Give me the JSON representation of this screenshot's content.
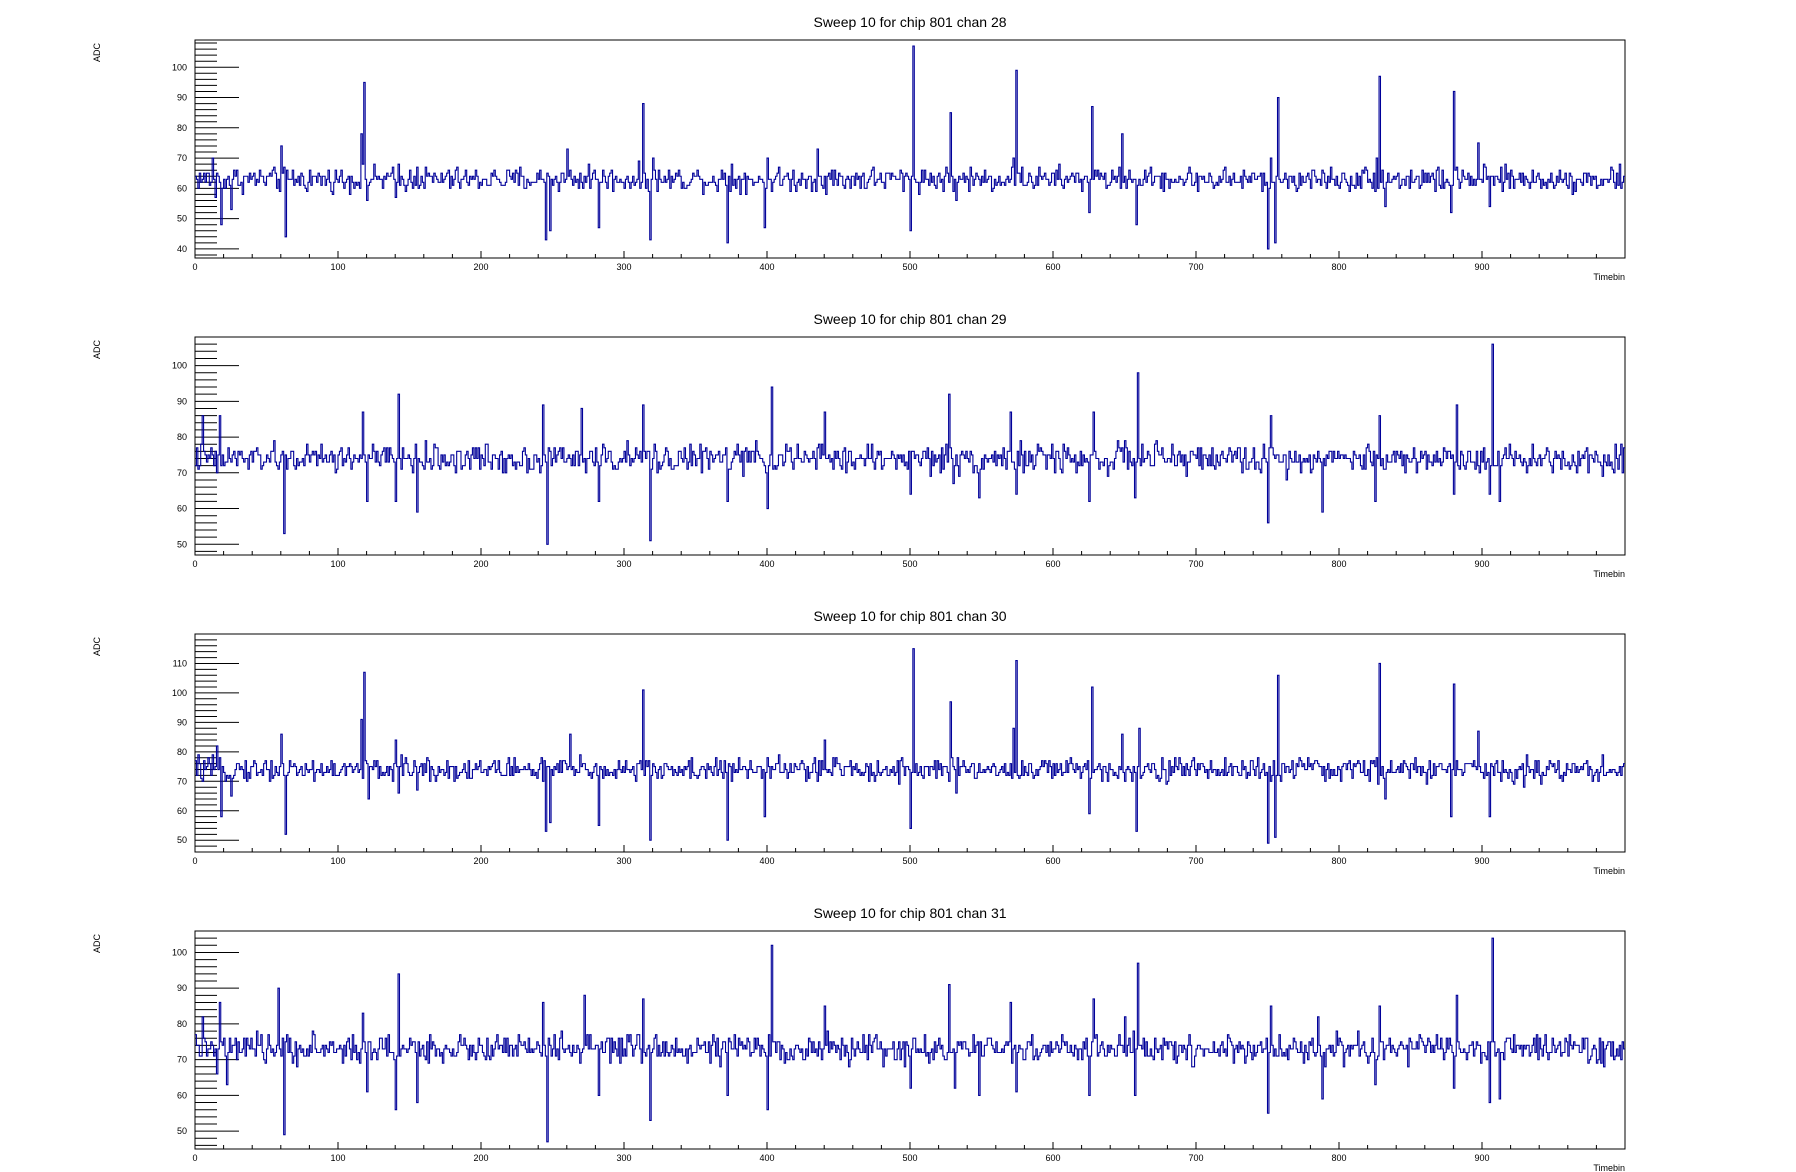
{
  "chart_data": [
    {
      "type": "line",
      "title": "Sweep 10 for chip 801 chan 28",
      "xlabel": "Timebin",
      "ylabel": "ADC",
      "xlim": [
        0,
        1000
      ],
      "ylim": [
        37,
        109
      ],
      "xticks": [
        0,
        100,
        200,
        300,
        400,
        500,
        600,
        700,
        800,
        900
      ],
      "yticks": [
        40,
        50,
        60,
        70,
        80,
        90,
        100
      ],
      "series": [
        {
          "color": "#000099",
          "baseline": 63,
          "spikes": [
            [
              12,
              70
            ],
            [
              14,
              57
            ],
            [
              18,
              48
            ],
            [
              25,
              53
            ],
            [
              60,
              74
            ],
            [
              63,
              44
            ],
            [
              116,
              78
            ],
            [
              118,
              95
            ],
            [
              120,
              56
            ],
            [
              140,
              57
            ],
            [
              142,
              68
            ],
            [
              155,
              67
            ],
            [
              245,
              43
            ],
            [
              248,
              46
            ],
            [
              260,
              73
            ],
            [
              275,
              68
            ],
            [
              282,
              47
            ],
            [
              313,
              88
            ],
            [
              318,
              43
            ],
            [
              320,
              70
            ],
            [
              372,
              42
            ],
            [
              375,
              68
            ],
            [
              398,
              47
            ],
            [
              400,
              70
            ],
            [
              435,
              73
            ],
            [
              500,
              46
            ],
            [
              502,
              107
            ],
            [
              528,
              85
            ],
            [
              532,
              56
            ],
            [
              572,
              70
            ],
            [
              574,
              99
            ],
            [
              625,
              52
            ],
            [
              627,
              87
            ],
            [
              648,
              78
            ],
            [
              658,
              48
            ],
            [
              750,
              40
            ],
            [
              752,
              70
            ],
            [
              755,
              42
            ],
            [
              757,
              90
            ],
            [
              826,
              70
            ],
            [
              828,
              97
            ],
            [
              832,
              54
            ],
            [
              878,
              52
            ],
            [
              880,
              92
            ],
            [
              897,
              75
            ],
            [
              905,
              54
            ]
          ]
        }
      ]
    },
    {
      "type": "line",
      "title": "Sweep 10 for chip 801 chan 29",
      "xlabel": "Timebin",
      "ylabel": "ADC",
      "xlim": [
        0,
        1000
      ],
      "ylim": [
        47,
        108
      ],
      "xticks": [
        0,
        100,
        200,
        300,
        400,
        500,
        600,
        700,
        800,
        900
      ],
      "yticks": [
        50,
        60,
        70,
        80,
        90,
        100
      ],
      "series": [
        {
          "color": "#000099",
          "baseline": 74,
          "spikes": [
            [
              5,
              86
            ],
            [
              15,
              70
            ],
            [
              17,
              86
            ],
            [
              20,
              72
            ],
            [
              60,
              75
            ],
            [
              62,
              53
            ],
            [
              117,
              87
            ],
            [
              120,
              62
            ],
            [
              140,
              62
            ],
            [
              142,
              92
            ],
            [
              155,
              59
            ],
            [
              243,
              89
            ],
            [
              246,
              50
            ],
            [
              270,
              88
            ],
            [
              282,
              62
            ],
            [
              313,
              89
            ],
            [
              318,
              51
            ],
            [
              372,
              62
            ],
            [
              400,
              60
            ],
            [
              403,
              94
            ],
            [
              440,
              87
            ],
            [
              500,
              64
            ],
            [
              527,
              92
            ],
            [
              530,
              67
            ],
            [
              548,
              63
            ],
            [
              570,
              87
            ],
            [
              574,
              64
            ],
            [
              625,
              62
            ],
            [
              628,
              87
            ],
            [
              650,
              79
            ],
            [
              657,
              63
            ],
            [
              659,
              98
            ],
            [
              750,
              56
            ],
            [
              752,
              86
            ],
            [
              785,
              76
            ],
            [
              788,
              59
            ],
            [
              825,
              62
            ],
            [
              828,
              86
            ],
            [
              880,
              64
            ],
            [
              882,
              89
            ],
            [
              905,
              64
            ],
            [
              907,
              106
            ],
            [
              912,
              62
            ]
          ]
        }
      ]
    },
    {
      "type": "line",
      "title": "Sweep 10 for chip 801 chan 30",
      "xlabel": "Timebin",
      "ylabel": "ADC",
      "xlim": [
        0,
        1000
      ],
      "ylim": [
        46,
        120
      ],
      "xticks": [
        0,
        100,
        200,
        300,
        400,
        500,
        600,
        700,
        800,
        900
      ],
      "yticks": [
        50,
        60,
        70,
        80,
        90,
        100,
        110
      ],
      "series": [
        {
          "color": "#000099",
          "baseline": 74,
          "spikes": [
            [
              15,
              82
            ],
            [
              18,
              58
            ],
            [
              25,
              65
            ],
            [
              60,
              86
            ],
            [
              63,
              52
            ],
            [
              116,
              91
            ],
            [
              118,
              107
            ],
            [
              121,
              64
            ],
            [
              140,
              84
            ],
            [
              142,
              66
            ],
            [
              155,
              67
            ],
            [
              245,
              53
            ],
            [
              248,
              56
            ],
            [
              262,
              86
            ],
            [
              282,
              55
            ],
            [
              313,
              101
            ],
            [
              318,
              50
            ],
            [
              372,
              50
            ],
            [
              375,
              70
            ],
            [
              398,
              58
            ],
            [
              400,
              78
            ],
            [
              440,
              84
            ],
            [
              500,
              54
            ],
            [
              502,
              115
            ],
            [
              528,
              97
            ],
            [
              532,
              66
            ],
            [
              572,
              88
            ],
            [
              574,
              111
            ],
            [
              625,
              59
            ],
            [
              627,
              102
            ],
            [
              648,
              86
            ],
            [
              658,
              53
            ],
            [
              660,
              88
            ],
            [
              750,
              49
            ],
            [
              752,
              70
            ],
            [
              755,
              51
            ],
            [
              757,
              106
            ],
            [
              826,
              78
            ],
            [
              828,
              110
            ],
            [
              832,
              64
            ],
            [
              878,
              58
            ],
            [
              880,
              103
            ],
            [
              897,
              87
            ],
            [
              905,
              58
            ]
          ]
        }
      ]
    },
    {
      "type": "line",
      "title": "Sweep 10 for chip 801 chan 31",
      "xlabel": "Timebin",
      "ylabel": "ADC",
      "xlim": [
        0,
        1000
      ],
      "ylim": [
        45,
        106
      ],
      "xticks": [
        0,
        100,
        200,
        300,
        400,
        500,
        600,
        700,
        800,
        900
      ],
      "yticks": [
        50,
        60,
        70,
        80,
        90,
        100
      ],
      "series": [
        {
          "color": "#000099",
          "baseline": 73,
          "spikes": [
            [
              5,
              82
            ],
            [
              15,
              66
            ],
            [
              17,
              86
            ],
            [
              22,
              63
            ],
            [
              58,
              90
            ],
            [
              62,
              49
            ],
            [
              117,
              83
            ],
            [
              120,
              61
            ],
            [
              140,
              56
            ],
            [
              142,
              94
            ],
            [
              155,
              58
            ],
            [
              243,
              86
            ],
            [
              246,
              47
            ],
            [
              272,
              88
            ],
            [
              282,
              60
            ],
            [
              313,
              87
            ],
            [
              318,
              53
            ],
            [
              372,
              60
            ],
            [
              400,
              56
            ],
            [
              403,
              102
            ],
            [
              440,
              85
            ],
            [
              500,
              62
            ],
            [
              527,
              91
            ],
            [
              531,
              62
            ],
            [
              548,
              60
            ],
            [
              570,
              86
            ],
            [
              574,
              61
            ],
            [
              625,
              60
            ],
            [
              628,
              87
            ],
            [
              650,
              82
            ],
            [
              657,
              60
            ],
            [
              659,
              97
            ],
            [
              750,
              55
            ],
            [
              752,
              85
            ],
            [
              785,
              82
            ],
            [
              788,
              59
            ],
            [
              825,
              63
            ],
            [
              828,
              85
            ],
            [
              880,
              62
            ],
            [
              882,
              88
            ],
            [
              905,
              58
            ],
            [
              907,
              104
            ],
            [
              912,
              59
            ]
          ]
        }
      ]
    }
  ]
}
